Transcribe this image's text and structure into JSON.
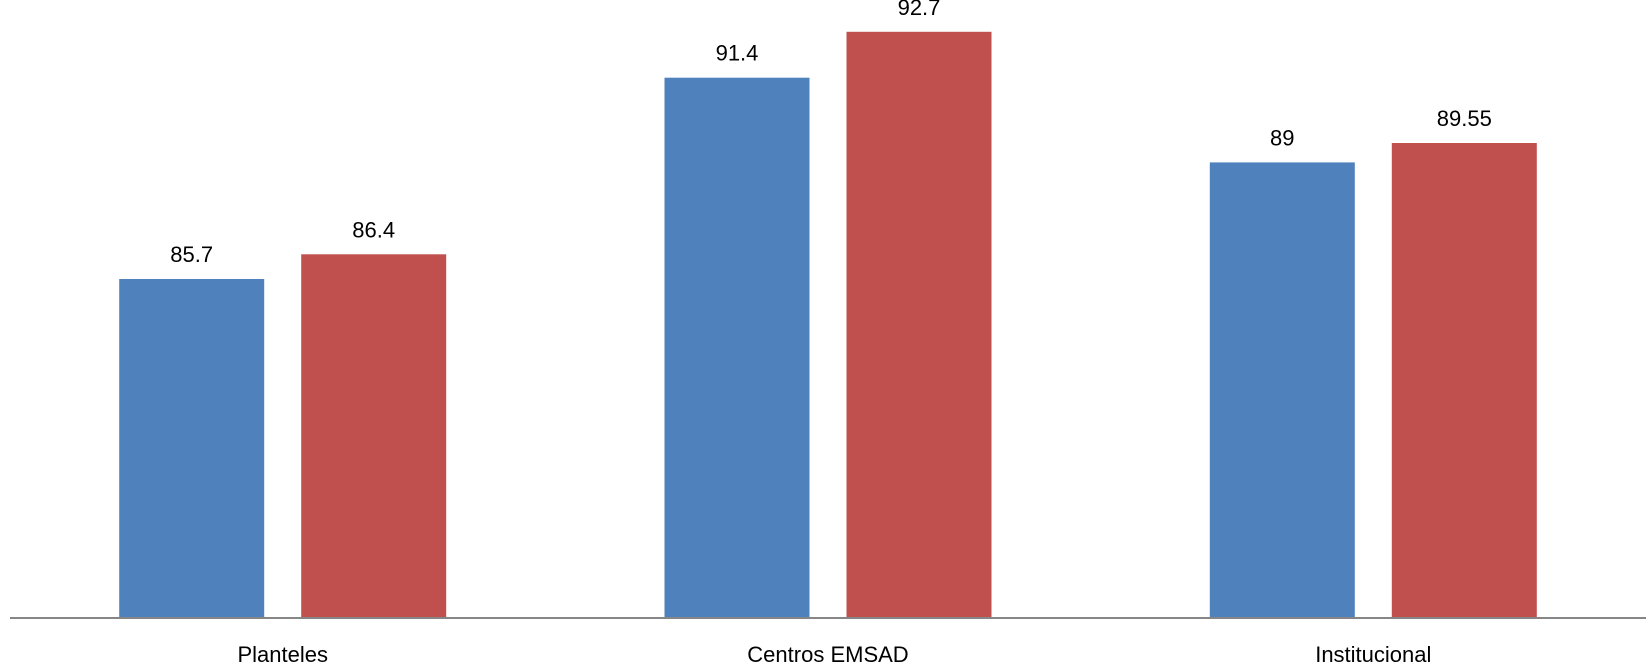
{
  "chart_data": {
    "type": "bar",
    "title": "",
    "xlabel": "",
    "ylabel": "",
    "categories": [
      "Planteles",
      "Centros EMSAD",
      "Institucional"
    ],
    "series": [
      {
        "color": "#4F81BD",
        "values": [
          85.7,
          91.4,
          89
        ]
      },
      {
        "color": "#C0504D",
        "values": [
          86.4,
          92.7,
          89.55
        ]
      }
    ],
    "data_labels": [
      [
        "85.7",
        "91.4",
        "89"
      ],
      [
        "86.4",
        "92.7",
        "89.55"
      ]
    ],
    "ylim": [
      76.1,
      93.6
    ],
    "y_axis_visible": false,
    "grid": false,
    "legend": "none",
    "axis_color": "#868686"
  }
}
